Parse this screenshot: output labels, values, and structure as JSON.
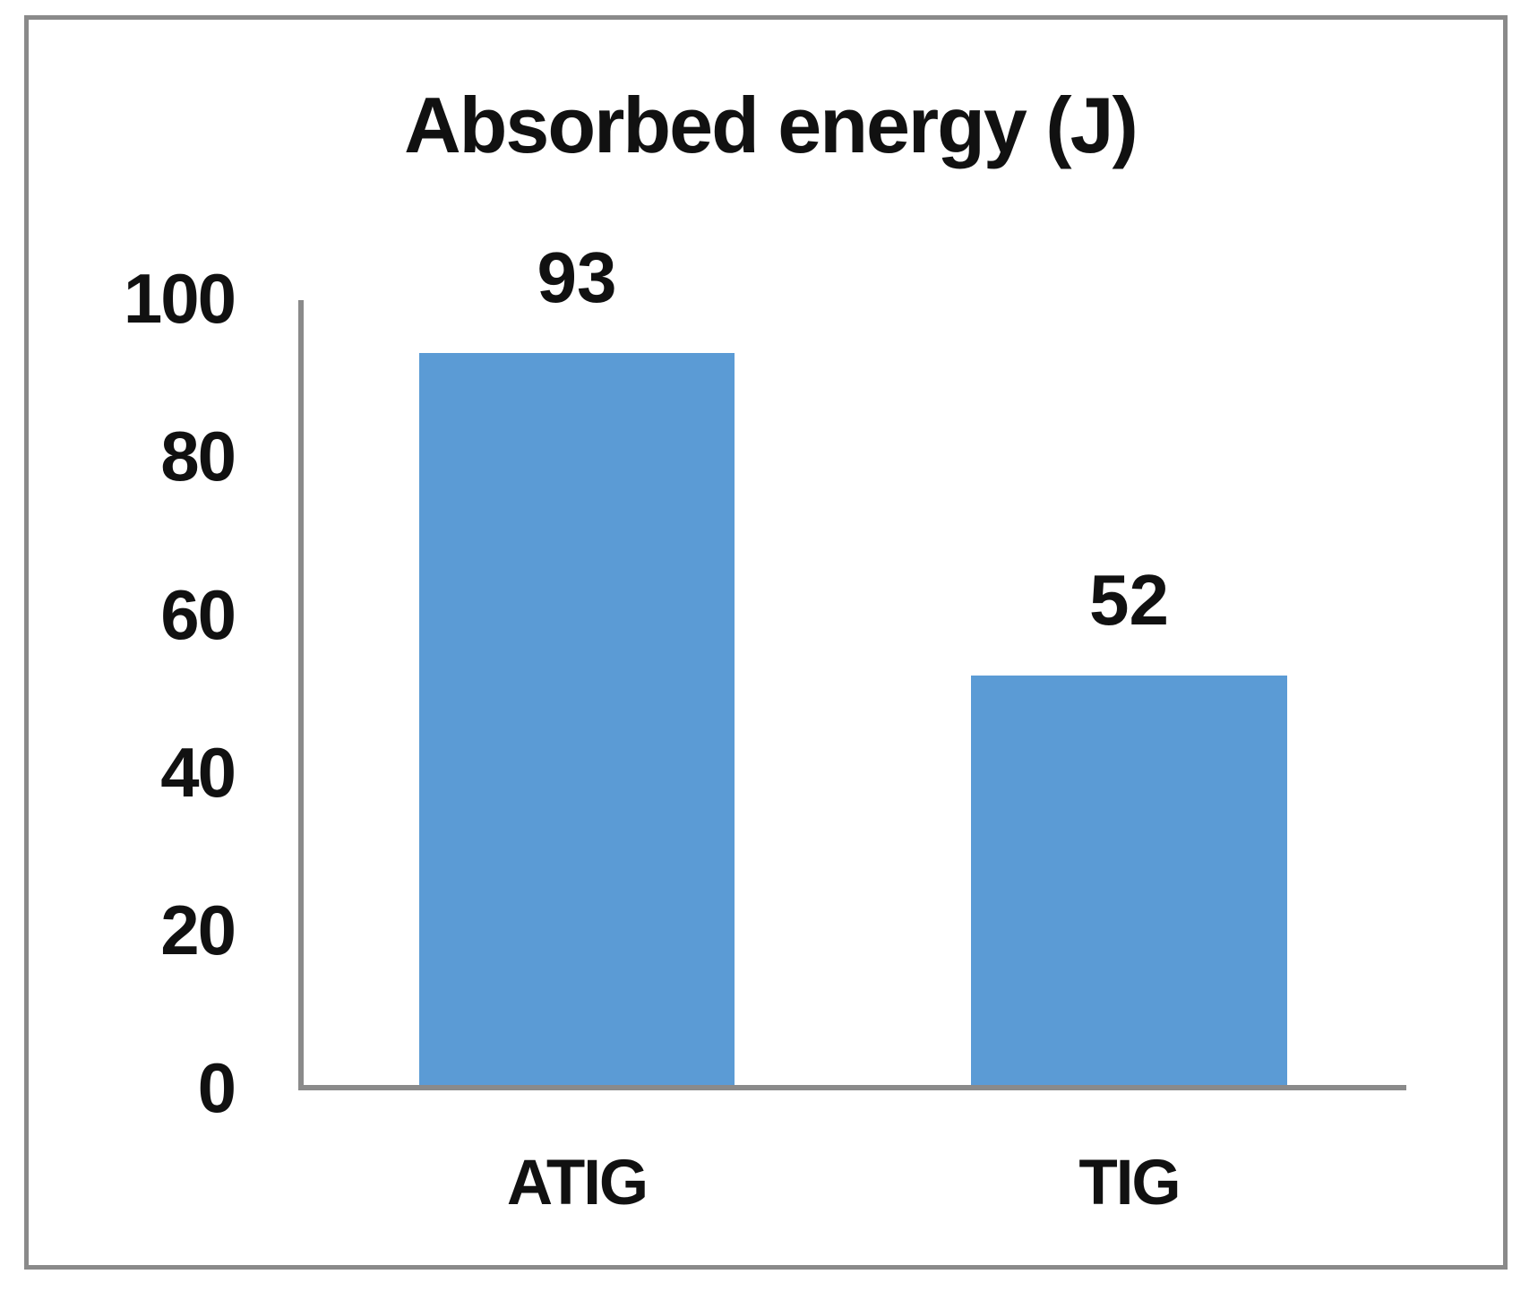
{
  "chart_data": {
    "type": "bar",
    "title": "Absorbed energy (J)",
    "categories": [
      "ATIG",
      "TIG"
    ],
    "values": [
      93,
      52
    ],
    "data_labels": [
      "93",
      "52"
    ],
    "yticks": [
      0,
      20,
      40,
      60,
      80,
      100
    ],
    "ylim": [
      0,
      100
    ],
    "xlabel": "",
    "ylabel": "",
    "grid": false,
    "legend": false,
    "bar_color": "#5B9BD5",
    "axis_color": "#8a8a8a",
    "frame_color": "#8a8a8a",
    "text_color": "#111111",
    "background_color": "#ffffff"
  }
}
